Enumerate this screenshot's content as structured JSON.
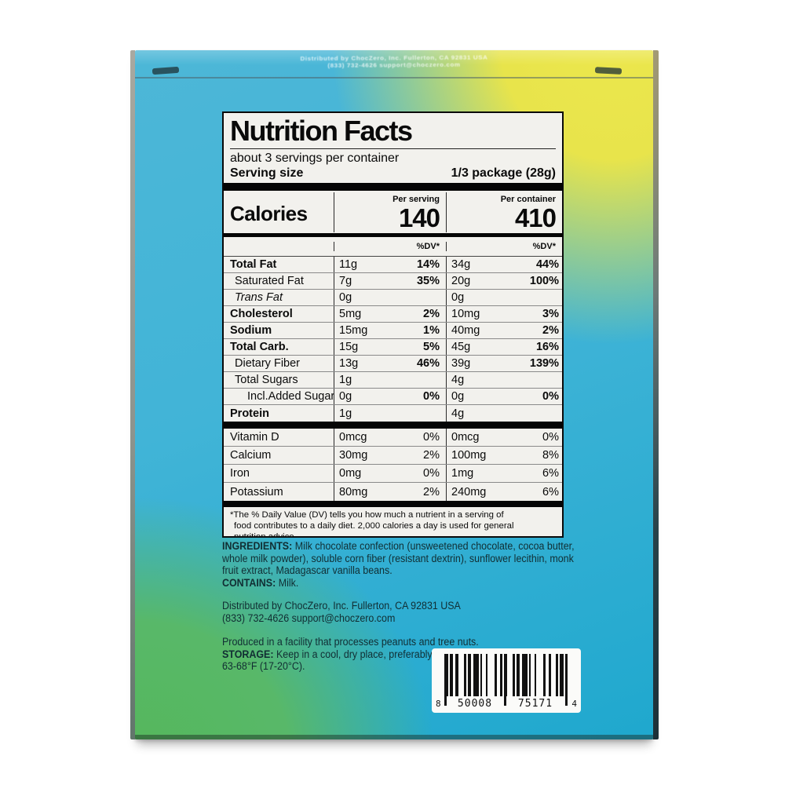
{
  "colors": {
    "box_cyan": "#4db7d7",
    "box_cyan_deep": "#1fa8ce",
    "box_yellow": "#e8e44b",
    "box_green": "#57b75c",
    "label_bg": "#f2f1ed",
    "label_ink": "#0a0a0a",
    "box_ink": "#112e33"
  },
  "flap": {
    "line1": "Distributed by ChocZero, Inc. Fullerton, CA 92831 USA",
    "line2": "(833) 732-4626 support@choczero.com"
  },
  "nutrition": {
    "title": "Nutrition Facts",
    "servings_line": "about 3 servings per container",
    "serving_size_label": "Serving size",
    "serving_size_value": "1/3 package (28g)",
    "calories": {
      "label": "Calories",
      "per_serving_label": "Per serving",
      "per_serving_value": "140",
      "per_container_label": "Per container",
      "per_container_value": "410"
    },
    "dv_header": "%DV*",
    "rows": [
      {
        "name": "Total Fat",
        "bold": true,
        "indent": 0,
        "serving_amount": "11g",
        "serving_dv": "14%",
        "container_amount": "34g",
        "container_dv": "44%"
      },
      {
        "name": "Saturated Fat",
        "bold": false,
        "indent": 1,
        "serving_amount": "7g",
        "serving_dv": "35%",
        "container_amount": "20g",
        "container_dv": "100%"
      },
      {
        "name": "Trans Fat",
        "bold": false,
        "italic": true,
        "indent": 1,
        "serving_amount": "0g",
        "serving_dv": "",
        "container_amount": "0g",
        "container_dv": ""
      },
      {
        "name": "Cholesterol",
        "bold": true,
        "indent": 0,
        "serving_amount": "5mg",
        "serving_dv": "2%",
        "container_amount": "10mg",
        "container_dv": "3%"
      },
      {
        "name": "Sodium",
        "bold": true,
        "indent": 0,
        "serving_amount": "15mg",
        "serving_dv": "1%",
        "container_amount": "40mg",
        "container_dv": "2%"
      },
      {
        "name": "Total Carb.",
        "bold": true,
        "indent": 0,
        "serving_amount": "15g",
        "serving_dv": "5%",
        "container_amount": "45g",
        "container_dv": "16%"
      },
      {
        "name": "Dietary Fiber",
        "bold": false,
        "indent": 1,
        "serving_amount": "13g",
        "serving_dv": "46%",
        "container_amount": "39g",
        "container_dv": "139%"
      },
      {
        "name": "Total Sugars",
        "bold": false,
        "indent": 1,
        "serving_amount": "1g",
        "serving_dv": "",
        "container_amount": "4g",
        "container_dv": ""
      },
      {
        "name": "Incl.Added Sugars",
        "bold": false,
        "indent": 2,
        "serving_amount": "0g",
        "serving_dv": "0%",
        "container_amount": "0g",
        "container_dv": "0%"
      },
      {
        "name": "Protein",
        "bold": true,
        "indent": 0,
        "serving_amount": "1g",
        "serving_dv": "",
        "container_amount": "4g",
        "container_dv": ""
      }
    ],
    "vitamin_rows": [
      {
        "name": "Vitamin D",
        "serving_amount": "0mcg",
        "serving_dv": "0%",
        "container_amount": "0mcg",
        "container_dv": "0%"
      },
      {
        "name": "Calcium",
        "serving_amount": "30mg",
        "serving_dv": "2%",
        "container_amount": "100mg",
        "container_dv": "8%"
      },
      {
        "name": "Iron",
        "serving_amount": "0mg",
        "serving_dv": "0%",
        "container_amount": "1mg",
        "container_dv": "6%"
      },
      {
        "name": "Potassium",
        "serving_amount": "80mg",
        "serving_dv": "2%",
        "container_amount": "240mg",
        "container_dv": "6%"
      }
    ],
    "footnote": "*The % Daily Value (DV) tells you how much a nutrient in a serving of\nfood contributes to a daily diet. 2,000 calories a day is used for general\nnutrition advice."
  },
  "info": {
    "ingredients_label": "INGREDIENTS:",
    "ingredients_text": " Milk chocolate confection (unsweetened chocolate, cocoa butter, whole milk powder), soluble corn fiber (resistant dextrin), sunflower lecithin, monk fruit extract, Madagascar vanilla beans.",
    "contains_label": "CONTAINS:",
    "contains_text": " Milk.",
    "distributed_line1": "Distributed by ChocZero, Inc. Fullerton, CA 92831 USA",
    "distributed_line2": "(833) 732-4626 support@choczero.com",
    "facility_line": "Produced in a facility that processes peanuts and tree nuts.",
    "storage_label": "STORAGE:",
    "storage_text": " Keep in a cool, dry place, preferably at",
    "storage_line2": "63-68°F (17-20°C)."
  },
  "barcode": {
    "left_digit": "8",
    "group1": "50008",
    "group2": "75171",
    "right_digit": "4"
  }
}
